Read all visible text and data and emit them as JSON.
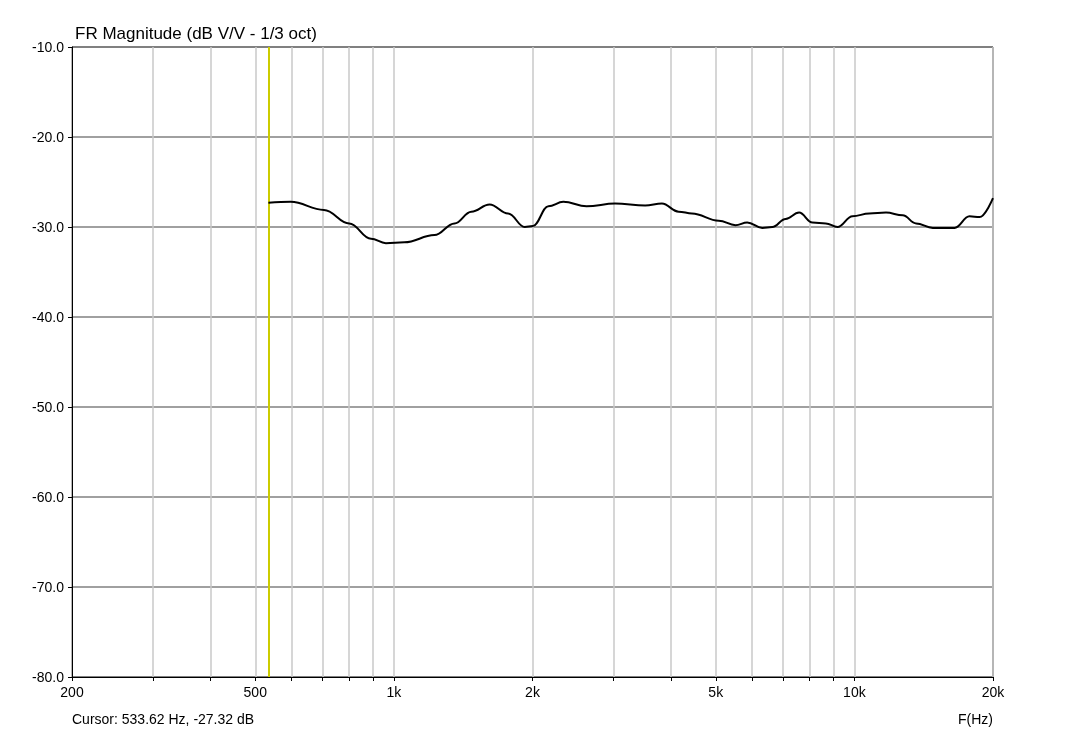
{
  "chart_data": {
    "type": "line",
    "title": "FR Magnitude (dB V/V - 1/3 oct)",
    "xlabel": "F(Hz)",
    "annotations": [
      "Cursor: 533.62 Hz, -27.32 dB"
    ],
    "log": "x",
    "grid": true,
    "marker": "none",
    "line_style": "solid",
    "xlim": [
      200,
      20000
    ],
    "xticks": [
      200,
      {
        "value": 300,
        "label": null
      },
      {
        "value": 400,
        "label": null
      },
      500,
      {
        "value": 600,
        "label": null
      },
      {
        "value": 700,
        "label": null
      },
      {
        "value": 800,
        "label": null
      },
      {
        "value": 900,
        "label": null
      },
      {
        "value": 1000,
        "label": "1k"
      },
      {
        "value": 2000,
        "label": "2k"
      },
      {
        "value": 3000,
        "label": null
      },
      {
        "value": 4000,
        "label": null
      },
      {
        "value": 5000,
        "label": "5k"
      },
      {
        "value": 6000,
        "label": null
      },
      {
        "value": 7000,
        "label": null
      },
      {
        "value": 8000,
        "label": null
      },
      {
        "value": 9000,
        "label": null
      },
      {
        "value": 10000,
        "label": "10k"
      },
      {
        "value": 20000,
        "label": "20k"
      }
    ],
    "ylim": [
      -80,
      -10
    ],
    "yticks": [
      {
        "value": -80,
        "label": "-80.0"
      },
      {
        "value": -70,
        "label": "-70.0"
      },
      {
        "value": -60,
        "label": "-60.0"
      },
      {
        "value": -50,
        "label": "-50.0"
      },
      {
        "value": -40,
        "label": "-40.0"
      },
      {
        "value": -30,
        "label": "-30.0"
      },
      {
        "value": -20,
        "label": "-20.0"
      },
      {
        "value": -10,
        "label": "-10.0"
      }
    ],
    "ref_lines": [
      {
        "axis": "x",
        "value": 533.62,
        "color": "#cccc00"
      }
    ],
    "series": [
      {
        "color": "#000000",
        "x": [
          534,
          597,
          705,
          800,
          892,
          961,
          1054,
          1225,
          1354,
          1473,
          1614,
          1770,
          1924,
          2003,
          2165,
          2333,
          2621,
          3022,
          3513,
          3820,
          4154,
          4440,
          5077,
          5519,
          5851,
          6310,
          6633,
          7091,
          7584,
          8108,
          8669,
          9190,
          9908,
          10774,
          11714,
          12736,
          13618,
          14800,
          16500,
          17781,
          18700,
          20000
        ],
        "values": [
          -27.3,
          -27.2,
          -28.1,
          -29.6,
          -31.3,
          -31.8,
          -31.7,
          -30.9,
          -29.6,
          -28.3,
          -27.5,
          -28.5,
          -30.0,
          -29.9,
          -27.7,
          -27.2,
          -27.7,
          -27.4,
          -27.6,
          -27.4,
          -28.3,
          -28.5,
          -29.3,
          -29.8,
          -29.5,
          -30.1,
          -30.0,
          -29.1,
          -28.4,
          -29.5,
          -29.6,
          -30.0,
          -28.8,
          -28.5,
          -28.4,
          -28.7,
          -29.6,
          -30.1,
          -30.1,
          -28.8,
          -28.9,
          -26.8
        ]
      }
    ]
  }
}
